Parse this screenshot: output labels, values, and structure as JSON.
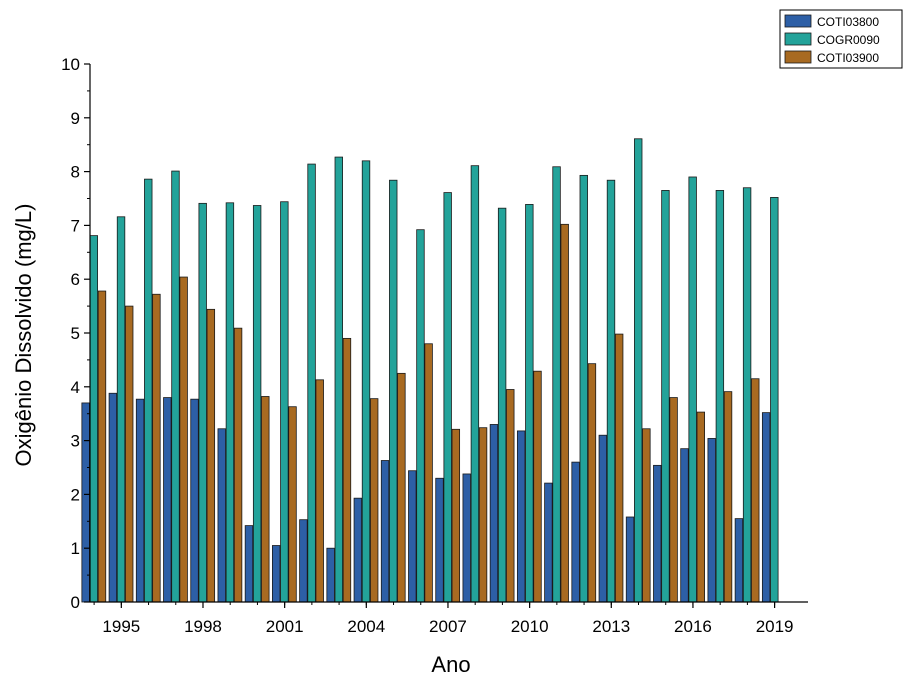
{
  "chart_data": {
    "type": "bar",
    "xlabel": "Ano",
    "ylabel": "Oxigênio Dissolvido (mg/L)",
    "ylim": [
      0,
      10
    ],
    "yticks": [
      0,
      1,
      2,
      3,
      4,
      5,
      6,
      7,
      8,
      9,
      10
    ],
    "x_tick_labels": [
      1995,
      1998,
      2001,
      2004,
      2007,
      2010,
      2013,
      2016,
      2019
    ],
    "categories": [
      1994,
      1995,
      1996,
      1997,
      1998,
      1999,
      2000,
      2001,
      2002,
      2003,
      2004,
      2005,
      2006,
      2007,
      2008,
      2009,
      2010,
      2011,
      2012,
      2013,
      2014,
      2015,
      2016,
      2017,
      2018,
      2019
    ],
    "legend_position": "top-right",
    "series": [
      {
        "name": "COTI03800",
        "color": "#2d5fa6",
        "values": [
          3.7,
          3.88,
          3.77,
          3.8,
          3.77,
          3.22,
          1.42,
          1.05,
          1.53,
          1.0,
          1.93,
          2.63,
          2.44,
          2.3,
          2.38,
          3.3,
          3.18,
          2.21,
          2.6,
          3.1,
          1.58,
          2.54,
          2.85,
          3.04,
          1.55,
          3.52
        ]
      },
      {
        "name": "COGR0090",
        "color": "#23a39a",
        "values": [
          6.81,
          7.16,
          7.86,
          8.01,
          7.41,
          7.42,
          7.37,
          7.44,
          8.14,
          8.27,
          8.2,
          7.84,
          6.92,
          7.61,
          8.11,
          7.32,
          7.39,
          8.09,
          7.93,
          7.84,
          8.61,
          7.65,
          7.9,
          7.65,
          7.7,
          7.52
        ]
      },
      {
        "name": "COTI03900",
        "color": "#a86a21",
        "values": [
          5.78,
          5.5,
          5.72,
          6.04,
          5.44,
          5.09,
          3.82,
          3.63,
          4.13,
          4.9,
          3.78,
          4.25,
          4.8,
          3.21,
          3.24,
          3.95,
          4.29,
          7.02,
          4.43,
          4.98,
          3.22,
          3.8,
          3.53,
          3.91,
          4.15,
          null
        ]
      }
    ]
  }
}
